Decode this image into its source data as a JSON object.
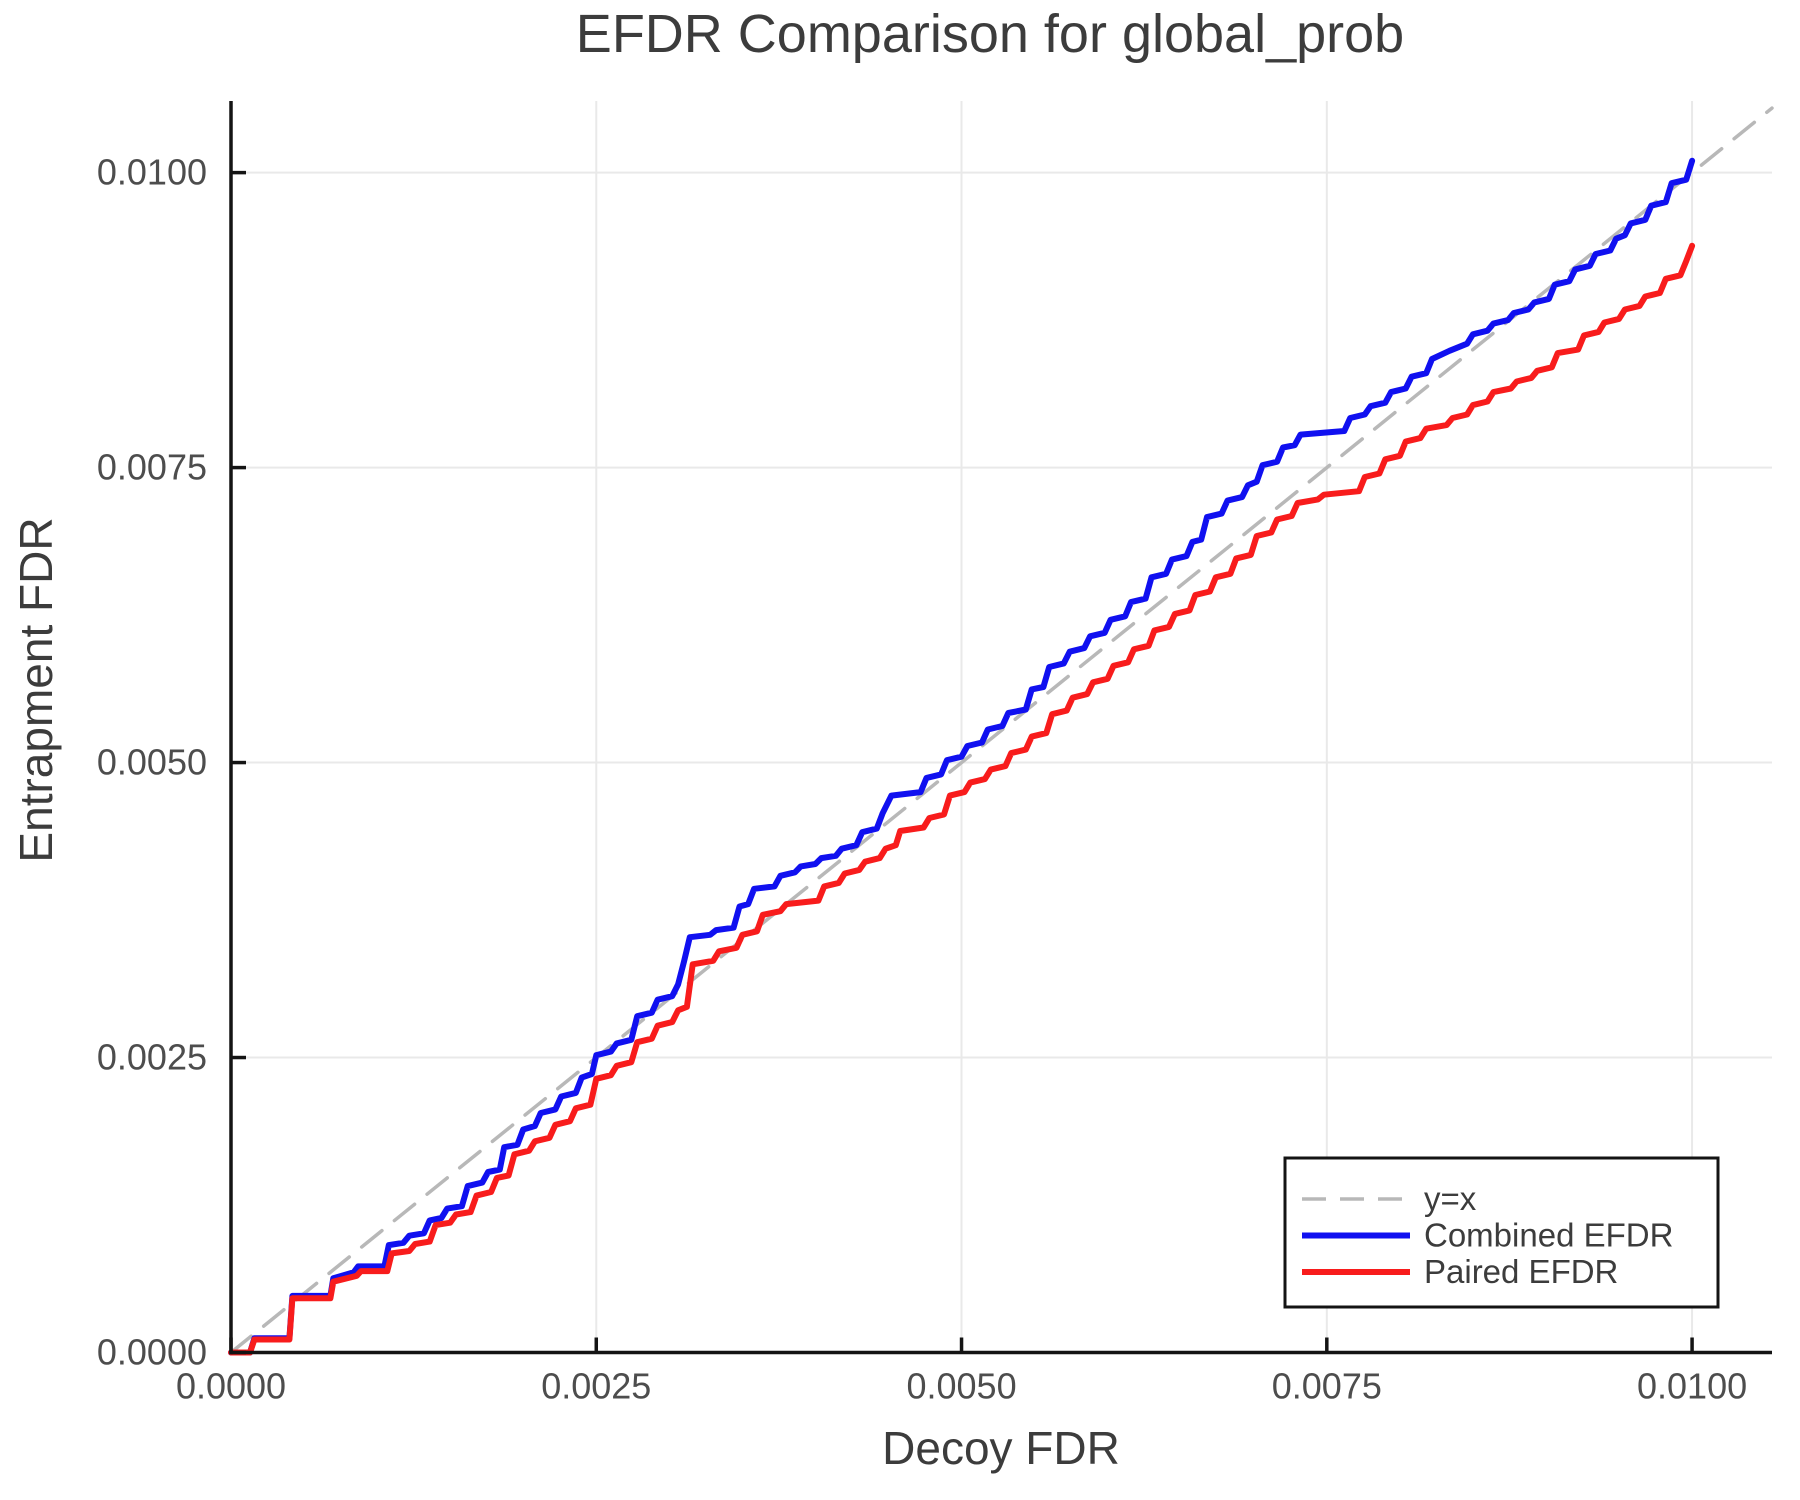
{
  "chart_data": {
    "type": "line",
    "title": "EFDR Comparison for global_prob",
    "xlabel": "Decoy FDR",
    "ylabel": "Entrapment FDR",
    "xlim": [
      0,
      0.010547
    ],
    "ylim": [
      0,
      0.010607
    ],
    "grid": true,
    "colors": {
      "identity_line": "#b8b8b8",
      "combined": "#1010f0",
      "paired": "#f81c1c",
      "gridline": "#e9e9e9",
      "spine": "#141414",
      "tick_label": "#4d4d4d",
      "text": "#3c3c3c",
      "legend_border": "#141414",
      "legend_background": "#ffffff"
    },
    "xticks": {
      "values": [
        0,
        0.0025,
        0.005,
        0.0075,
        0.01
      ],
      "labels": [
        "0.0000",
        "0.0025",
        "0.0050",
        "0.0075",
        "0.0100"
      ]
    },
    "yticks": {
      "values": [
        0,
        0.0025,
        0.005,
        0.0075,
        0.01
      ],
      "labels": [
        "0.0000",
        "0.0025",
        "0.0050",
        "0.0075",
        "0.0100"
      ]
    },
    "legend": {
      "position": "lower right",
      "entries": [
        {
          "label": "y=x",
          "style": "dashed",
          "color": "#b8b8b8"
        },
        {
          "label": "Combined EFDR",
          "style": "solid",
          "color": "#1010f0"
        },
        {
          "label": "Paired EFDR",
          "style": "solid",
          "color": "#f81c1c"
        }
      ]
    },
    "series": [
      {
        "name": "y=x",
        "style": "dashed",
        "color": "#b8b8b8",
        "width": 3.5,
        "points": [
          [
            0,
            0
          ],
          [
            0.010547,
            0.010547
          ]
        ]
      },
      {
        "name": "Combined EFDR",
        "style": "solid",
        "color": "#1010f0",
        "width": 6,
        "points": [
          [
            0,
            0
          ],
          [
            0.00013,
            0
          ],
          [
            0.00016,
            0.00012
          ],
          [
            0.0004,
            0.00012
          ],
          [
            0.00042,
            0.00048
          ],
          [
            0.00068,
            0.00048
          ],
          [
            0.0007,
            0.00063
          ],
          [
            0.00084,
            0.00068
          ],
          [
            0.00087,
            0.00073
          ],
          [
            0.00105,
            0.00073
          ],
          [
            0.00108,
            0.00091
          ],
          [
            0.00118,
            0.00093
          ],
          [
            0.00122,
            0.00099
          ],
          [
            0.00132,
            0.00101
          ],
          [
            0.00136,
            0.00112
          ],
          [
            0.00144,
            0.00114
          ],
          [
            0.00148,
            0.00122
          ],
          [
            0.00158,
            0.00124
          ],
          [
            0.00162,
            0.00141
          ],
          [
            0.00172,
            0.00144
          ],
          [
            0.00176,
            0.00153
          ],
          [
            0.00184,
            0.00155
          ],
          [
            0.00187,
            0.00174
          ],
          [
            0.00196,
            0.00176
          ],
          [
            0.002,
            0.00189
          ],
          [
            0.00208,
            0.00192
          ],
          [
            0.00212,
            0.00203
          ],
          [
            0.00222,
            0.00206
          ],
          [
            0.00226,
            0.00217
          ],
          [
            0.00236,
            0.0022
          ],
          [
            0.0024,
            0.00233
          ],
          [
            0.00247,
            0.00236
          ],
          [
            0.0025,
            0.00252
          ],
          [
            0.0026,
            0.00255
          ],
          [
            0.00264,
            0.00262
          ],
          [
            0.00274,
            0.00265
          ],
          [
            0.00278,
            0.00285
          ],
          [
            0.00288,
            0.00288
          ],
          [
            0.00292,
            0.00299
          ],
          [
            0.00302,
            0.00302
          ],
          [
            0.00306,
            0.00312
          ],
          [
            0.0031,
            0.00331
          ],
          [
            0.00314,
            0.00352
          ],
          [
            0.00328,
            0.00354
          ],
          [
            0.00332,
            0.00358
          ],
          [
            0.00344,
            0.0036
          ],
          [
            0.00348,
            0.00378
          ],
          [
            0.00354,
            0.0038
          ],
          [
            0.00358,
            0.00393
          ],
          [
            0.00372,
            0.00395
          ],
          [
            0.00376,
            0.00404
          ],
          [
            0.00386,
            0.00407
          ],
          [
            0.0039,
            0.00412
          ],
          [
            0.004,
            0.00414
          ],
          [
            0.00404,
            0.00419
          ],
          [
            0.00414,
            0.00421
          ],
          [
            0.00418,
            0.00427
          ],
          [
            0.00428,
            0.0043
          ],
          [
            0.00432,
            0.00441
          ],
          [
            0.00442,
            0.00444
          ],
          [
            0.00446,
            0.00457
          ],
          [
            0.00452,
            0.00472
          ],
          [
            0.00472,
            0.00475
          ],
          [
            0.00476,
            0.00487
          ],
          [
            0.00486,
            0.0049
          ],
          [
            0.0049,
            0.00502
          ],
          [
            0.005,
            0.00505
          ],
          [
            0.00504,
            0.00514
          ],
          [
            0.00514,
            0.00517
          ],
          [
            0.00518,
            0.00528
          ],
          [
            0.00528,
            0.00531
          ],
          [
            0.00532,
            0.00542
          ],
          [
            0.00544,
            0.00545
          ],
          [
            0.00548,
            0.00562
          ],
          [
            0.00556,
            0.00564
          ],
          [
            0.0056,
            0.00581
          ],
          [
            0.0057,
            0.00584
          ],
          [
            0.00574,
            0.00594
          ],
          [
            0.00584,
            0.00597
          ],
          [
            0.00588,
            0.00607
          ],
          [
            0.00598,
            0.0061
          ],
          [
            0.00602,
            0.00621
          ],
          [
            0.00612,
            0.00624
          ],
          [
            0.00616,
            0.00636
          ],
          [
            0.00626,
            0.00639
          ],
          [
            0.0063,
            0.00657
          ],
          [
            0.0064,
            0.0066
          ],
          [
            0.00644,
            0.00672
          ],
          [
            0.00654,
            0.00675
          ],
          [
            0.00658,
            0.00687
          ],
          [
            0.00664,
            0.00689
          ],
          [
            0.00668,
            0.00708
          ],
          [
            0.00678,
            0.00711
          ],
          [
            0.00682,
            0.00722
          ],
          [
            0.00692,
            0.00725
          ],
          [
            0.00696,
            0.00735
          ],
          [
            0.00702,
            0.00738
          ],
          [
            0.00706,
            0.00752
          ],
          [
            0.00716,
            0.00755
          ],
          [
            0.0072,
            0.00767
          ],
          [
            0.00728,
            0.00769
          ],
          [
            0.00732,
            0.00778
          ],
          [
            0.00762,
            0.00781
          ],
          [
            0.00766,
            0.00792
          ],
          [
            0.00776,
            0.00795
          ],
          [
            0.0078,
            0.00802
          ],
          [
            0.0079,
            0.00805
          ],
          [
            0.00794,
            0.00814
          ],
          [
            0.00804,
            0.00817
          ],
          [
            0.00808,
            0.00827
          ],
          [
            0.00818,
            0.0083
          ],
          [
            0.00822,
            0.00842
          ],
          [
            0.00834,
            0.00849
          ],
          [
            0.00846,
            0.00855
          ],
          [
            0.0085,
            0.00863
          ],
          [
            0.0086,
            0.00866
          ],
          [
            0.00864,
            0.00872
          ],
          [
            0.00874,
            0.00875
          ],
          [
            0.00878,
            0.00881
          ],
          [
            0.00888,
            0.00884
          ],
          [
            0.00892,
            0.0089
          ],
          [
            0.00902,
            0.00893
          ],
          [
            0.00906,
            0.00905
          ],
          [
            0.00916,
            0.00908
          ],
          [
            0.0092,
            0.00918
          ],
          [
            0.0093,
            0.00921
          ],
          [
            0.00934,
            0.00931
          ],
          [
            0.00944,
            0.00934
          ],
          [
            0.00948,
            0.00944
          ],
          [
            0.00954,
            0.00947
          ],
          [
            0.00958,
            0.00957
          ],
          [
            0.00968,
            0.0096
          ],
          [
            0.00972,
            0.00972
          ],
          [
            0.00982,
            0.00975
          ],
          [
            0.00986,
            0.00991
          ],
          [
            0.00996,
            0.00994
          ],
          [
            0.01,
            0.0101
          ]
        ]
      },
      {
        "name": "Paired EFDR",
        "style": "solid",
        "color": "#f81c1c",
        "width": 6,
        "points": [
          [
            0,
            0
          ],
          [
            0.00013,
            0
          ],
          [
            0.00016,
            0.00011
          ],
          [
            0.0004,
            0.00011
          ],
          [
            0.00042,
            0.00046
          ],
          [
            0.00068,
            0.00046
          ],
          [
            0.0007,
            0.0006
          ],
          [
            0.00086,
            0.00065
          ],
          [
            0.00089,
            0.00069
          ],
          [
            0.00107,
            0.00069
          ],
          [
            0.0011,
            0.00084
          ],
          [
            0.00122,
            0.00086
          ],
          [
            0.00126,
            0.00092
          ],
          [
            0.00136,
            0.00094
          ],
          [
            0.0014,
            0.00108
          ],
          [
            0.0015,
            0.0011
          ],
          [
            0.00154,
            0.00117
          ],
          [
            0.00164,
            0.00119
          ],
          [
            0.00168,
            0.00133
          ],
          [
            0.00178,
            0.00136
          ],
          [
            0.00182,
            0.00148
          ],
          [
            0.0019,
            0.0015
          ],
          [
            0.00194,
            0.00168
          ],
          [
            0.00204,
            0.00171
          ],
          [
            0.00208,
            0.00179
          ],
          [
            0.00218,
            0.00182
          ],
          [
            0.00222,
            0.00193
          ],
          [
            0.00232,
            0.00196
          ],
          [
            0.00236,
            0.00207
          ],
          [
            0.00246,
            0.0021
          ],
          [
            0.0025,
            0.00232
          ],
          [
            0.0026,
            0.00235
          ],
          [
            0.00264,
            0.00243
          ],
          [
            0.00274,
            0.00246
          ],
          [
            0.00278,
            0.00263
          ],
          [
            0.00288,
            0.00266
          ],
          [
            0.00292,
            0.00277
          ],
          [
            0.00302,
            0.0028
          ],
          [
            0.00306,
            0.0029
          ],
          [
            0.00312,
            0.00293
          ],
          [
            0.00316,
            0.00329
          ],
          [
            0.0033,
            0.00332
          ],
          [
            0.00334,
            0.0034
          ],
          [
            0.00346,
            0.00343
          ],
          [
            0.0035,
            0.00354
          ],
          [
            0.0036,
            0.00357
          ],
          [
            0.00364,
            0.00371
          ],
          [
            0.00376,
            0.00374
          ],
          [
            0.0038,
            0.0038
          ],
          [
            0.00402,
            0.00383
          ],
          [
            0.00406,
            0.00395
          ],
          [
            0.00416,
            0.00398
          ],
          [
            0.0042,
            0.00406
          ],
          [
            0.0043,
            0.00409
          ],
          [
            0.00434,
            0.00416
          ],
          [
            0.00444,
            0.00419
          ],
          [
            0.00448,
            0.00427
          ],
          [
            0.00455,
            0.0043
          ],
          [
            0.00458,
            0.00442
          ],
          [
            0.00474,
            0.00445
          ],
          [
            0.00478,
            0.00453
          ],
          [
            0.00488,
            0.00456
          ],
          [
            0.00492,
            0.00472
          ],
          [
            0.00502,
            0.00475
          ],
          [
            0.00506,
            0.00483
          ],
          [
            0.00516,
            0.00486
          ],
          [
            0.0052,
            0.00494
          ],
          [
            0.0053,
            0.00497
          ],
          [
            0.00534,
            0.00508
          ],
          [
            0.00544,
            0.00511
          ],
          [
            0.00548,
            0.00522
          ],
          [
            0.00558,
            0.00525
          ],
          [
            0.00562,
            0.00541
          ],
          [
            0.00572,
            0.00544
          ],
          [
            0.00576,
            0.00555
          ],
          [
            0.00586,
            0.00558
          ],
          [
            0.0059,
            0.00568
          ],
          [
            0.006,
            0.00571
          ],
          [
            0.00604,
            0.00582
          ],
          [
            0.00614,
            0.00585
          ],
          [
            0.00618,
            0.00596
          ],
          [
            0.00628,
            0.00599
          ],
          [
            0.00632,
            0.00612
          ],
          [
            0.00642,
            0.00615
          ],
          [
            0.00646,
            0.00626
          ],
          [
            0.00656,
            0.00629
          ],
          [
            0.0066,
            0.00642
          ],
          [
            0.0067,
            0.00645
          ],
          [
            0.00674,
            0.00657
          ],
          [
            0.00684,
            0.0066
          ],
          [
            0.00688,
            0.00673
          ],
          [
            0.00698,
            0.00676
          ],
          [
            0.00702,
            0.00692
          ],
          [
            0.00712,
            0.00695
          ],
          [
            0.00716,
            0.00706
          ],
          [
            0.00726,
            0.00709
          ],
          [
            0.0073,
            0.0072
          ],
          [
            0.00744,
            0.00723
          ],
          [
            0.00748,
            0.00727
          ],
          [
            0.00772,
            0.0073
          ],
          [
            0.00776,
            0.00742
          ],
          [
            0.00786,
            0.00745
          ],
          [
            0.0079,
            0.00757
          ],
          [
            0.008,
            0.0076
          ],
          [
            0.00804,
            0.00772
          ],
          [
            0.00814,
            0.00775
          ],
          [
            0.00818,
            0.00783
          ],
          [
            0.00832,
            0.00786
          ],
          [
            0.00836,
            0.00792
          ],
          [
            0.00846,
            0.00795
          ],
          [
            0.0085,
            0.00803
          ],
          [
            0.0086,
            0.00806
          ],
          [
            0.00864,
            0.00814
          ],
          [
            0.00876,
            0.00817
          ],
          [
            0.0088,
            0.00823
          ],
          [
            0.0089,
            0.00826
          ],
          [
            0.00894,
            0.00832
          ],
          [
            0.00904,
            0.00835
          ],
          [
            0.00908,
            0.00847
          ],
          [
            0.00922,
            0.0085
          ],
          [
            0.00926,
            0.00862
          ],
          [
            0.00936,
            0.00865
          ],
          [
            0.0094,
            0.00873
          ],
          [
            0.0095,
            0.00876
          ],
          [
            0.00954,
            0.00884
          ],
          [
            0.00964,
            0.00887
          ],
          [
            0.00968,
            0.00895
          ],
          [
            0.00978,
            0.00898
          ],
          [
            0.00982,
            0.0091
          ],
          [
            0.00992,
            0.00913
          ],
          [
            0.00996,
            0.00925
          ],
          [
            0.01,
            0.00938
          ]
        ]
      }
    ]
  }
}
